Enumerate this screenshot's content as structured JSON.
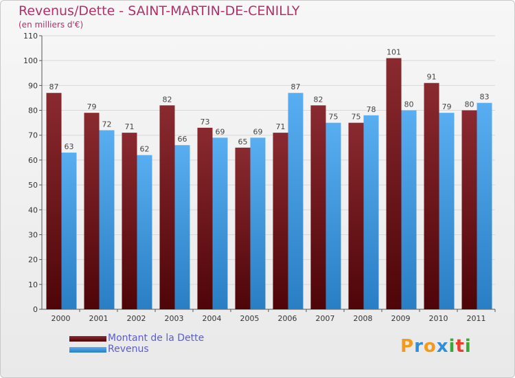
{
  "header": {
    "title": "Revenus/Dette - SAINT-MARTIN-DE-CENILLY",
    "subtitle": "(en milliers d'€)"
  },
  "chart_data": {
    "type": "bar",
    "title": "Revenus/Dette - SAINT-MARTIN-DE-CENILLY",
    "subtitle": "(en milliers d'€)",
    "xlabel": "",
    "ylabel": "",
    "ylim": [
      0,
      110
    ],
    "yticks": [
      0,
      10,
      20,
      30,
      40,
      50,
      60,
      70,
      80,
      90,
      100,
      110
    ],
    "grid": true,
    "legend_position": "bottom-left",
    "categories": [
      "2000",
      "2001",
      "2002",
      "2003",
      "2004",
      "2005",
      "2006",
      "2007",
      "2008",
      "2009",
      "2010",
      "2011"
    ],
    "series": [
      {
        "name": "Montant de la Dette",
        "color": "#7a1a22",
        "values": [
          87,
          79,
          71,
          82,
          73,
          65,
          71,
          82,
          75,
          101,
          91,
          80
        ]
      },
      {
        "name": "Revenus",
        "color": "#3f9fe0",
        "values": [
          63,
          72,
          62,
          66,
          69,
          69,
          87,
          75,
          78,
          80,
          79,
          83
        ]
      }
    ]
  },
  "legend": {
    "items": [
      {
        "label": "Montant de la Dette",
        "color": "#7a1a22"
      },
      {
        "label": "Revenus",
        "color": "#3f9fe0"
      }
    ]
  },
  "logo": {
    "text": "Proxiti",
    "letters": [
      "P",
      "r",
      "o",
      "x",
      "i",
      "t",
      "i"
    ],
    "colors": [
      "#f29a1e",
      "#2f8fd8",
      "#f29a1e",
      "#2f8fd8",
      "#3aaa35",
      "#e8402a",
      "#3aaa35"
    ]
  }
}
